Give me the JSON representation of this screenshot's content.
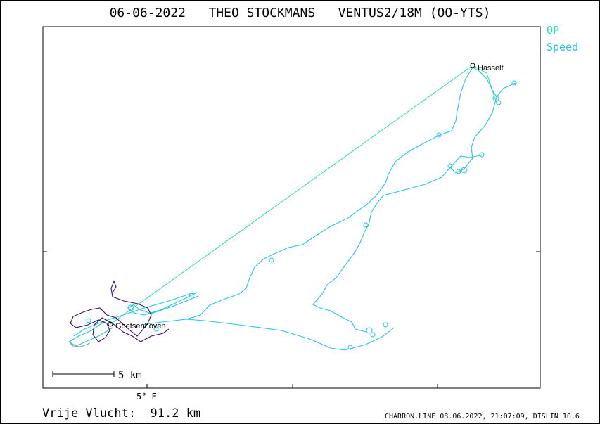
{
  "header": {
    "title": "06-06-2022   THEO STOCKMANS   VENTUS2/18M (OO-YTS)"
  },
  "legend": {
    "items": [
      {
        "label": "OP",
        "color": "#22e0b0"
      },
      {
        "label": "Speed",
        "color": "#22c6e6"
      }
    ]
  },
  "map": {
    "places": [
      "Hasselt",
      "Goetsenhoven"
    ],
    "scale_label": "5  km",
    "longitude_tick": "5° E",
    "colors": {
      "task_line": "#22e0b0",
      "track": "#22c6e6",
      "local_track": "#3a0a7a",
      "gray_segment": "#9a9a9a"
    }
  },
  "footer": {
    "free_flight": "Vrije Vlucht:  91.2 km",
    "credit": "CHARRON.LINE 08.06.2022, 21:07:09, DISLIN 10.6"
  }
}
